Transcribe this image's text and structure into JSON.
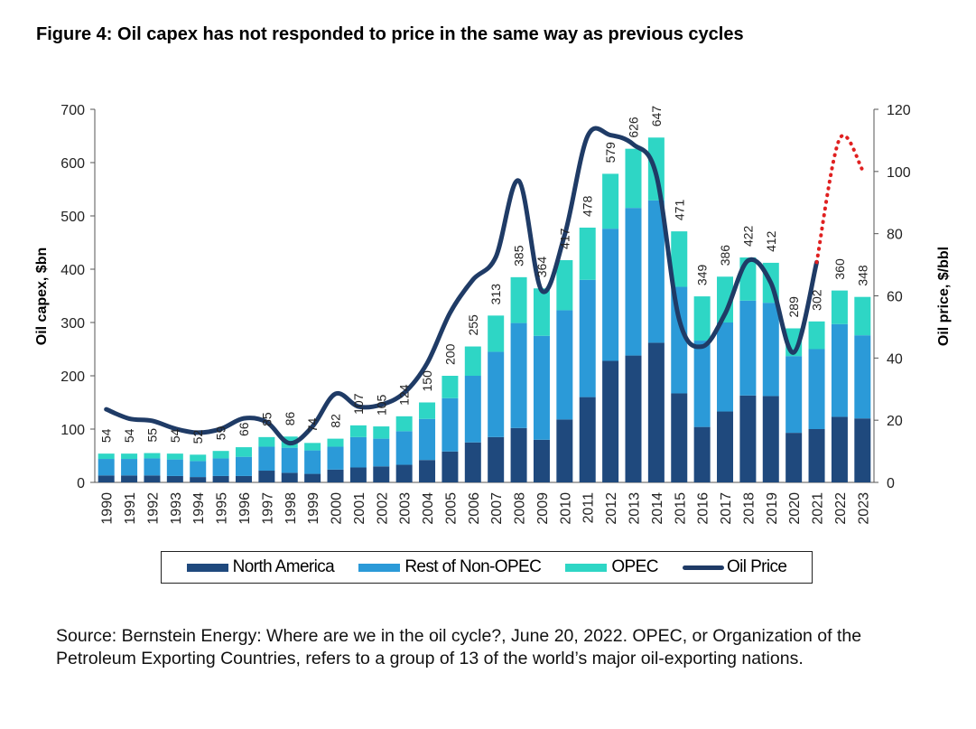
{
  "title": "Figure 4: Oil capex has not responded to price in the same way as previous cycles",
  "source": "Source: Bernstein Energy: Where are we in the oil cycle?, June 20, 2022. OPEC, or Organization of the Petroleum Exporting Countries, refers to a group of 13 of the world’s major oil-exporting nations.",
  "legend": {
    "north_america": "North America",
    "rest_non_opec": "Rest of Non-OPEC",
    "opec": "OPEC",
    "oil_price": "Oil Price"
  },
  "colors": {
    "north_america": "#1f497d",
    "rest_non_opec": "#2b9ad8",
    "opec": "#2ed6c5",
    "oil_price": "#1f3b66",
    "forecast": "#e02020"
  },
  "chart_data": {
    "type": "bar",
    "stacked": true,
    "categories": [
      "1990",
      "1991",
      "1992",
      "1993",
      "1994",
      "1995",
      "1996",
      "1997",
      "1998",
      "1999",
      "2000",
      "2001",
      "2002",
      "2003",
      "2004",
      "2005",
      "2006",
      "2007",
      "2008",
      "2009",
      "2010",
      "2011",
      "2012",
      "2013",
      "2014",
      "2015",
      "2016",
      "2017",
      "2018",
      "2019",
      "2020",
      "2021",
      "2022",
      "2023"
    ],
    "totals_labels": [
      "54",
      "54",
      "55",
      "54",
      "52",
      "59",
      "66",
      "85",
      "86",
      "74",
      "82",
      "107",
      "105",
      "124",
      "150",
      "200",
      "255",
      "313",
      "385",
      "364",
      "417",
      "478",
      "579",
      "626",
      "647",
      "471",
      "349",
      "386",
      "422",
      "412",
      "289",
      "302",
      "360",
      "348"
    ],
    "series": [
      {
        "name": "North America",
        "values": [
          13,
          13,
          13,
          12,
          10,
          12,
          12,
          22,
          18,
          16,
          24,
          28,
          30,
          33,
          42,
          58,
          75,
          85,
          102,
          80,
          118,
          160,
          228,
          238,
          262,
          167,
          104,
          133,
          163,
          162,
          93,
          100,
          123,
          120
        ]
      },
      {
        "name": "Rest of Non-OPEC",
        "values": [
          31,
          31,
          32,
          31,
          30,
          33,
          36,
          45,
          47,
          44,
          43,
          57,
          52,
          63,
          77,
          100,
          125,
          160,
          197,
          195,
          205,
          220,
          248,
          277,
          267,
          200,
          162,
          167,
          178,
          175,
          144,
          150,
          174,
          156
        ]
      },
      {
        "name": "OPEC",
        "values": [
          10,
          10,
          10,
          11,
          12,
          14,
          18,
          18,
          21,
          14,
          15,
          22,
          23,
          28,
          31,
          42,
          55,
          68,
          86,
          89,
          94,
          98,
          103,
          111,
          118,
          104,
          83,
          86,
          81,
          75,
          52,
          52,
          63,
          72
        ]
      }
    ],
    "line_series": {
      "name": "Oil Price",
      "values": [
        23.5,
        20.5,
        19.8,
        17.3,
        16,
        17.2,
        20.6,
        19.4,
        12.6,
        18,
        28.5,
        24.4,
        25,
        28.8,
        38.3,
        54.5,
        65.2,
        72.5,
        97,
        61.7,
        79.5,
        111.3,
        111.7,
        108.7,
        98.9,
        52.4,
        43.7,
        54.2,
        71.3,
        64.2,
        41.8,
        70.8
      ],
      "forecast_values": [
        {
          "x": "2021",
          "y": 70.8
        },
        {
          "x": "2022",
          "y": 110.5
        },
        {
          "x": "2023",
          "y": 100.5
        }
      ]
    },
    "ylabel": "Oil capex, $bn",
    "y2label": "Oil price, $/bbl",
    "ylim": [
      0,
      700
    ],
    "y2lim": [
      0,
      120
    ],
    "yticks": [
      "0",
      "100",
      "200",
      "300",
      "400",
      "500",
      "600",
      "700"
    ],
    "y2ticks": [
      "0",
      "20",
      "40",
      "60",
      "80",
      "100",
      "120"
    ],
    "legend_position": "bottom"
  }
}
